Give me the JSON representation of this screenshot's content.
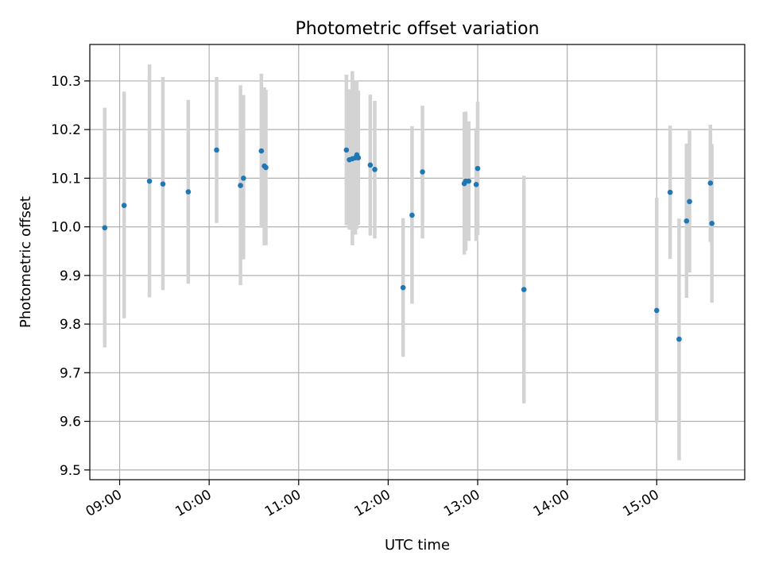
{
  "chart_data": {
    "type": "scatter",
    "title": "Photometric offset variation",
    "xlabel": "UTC time",
    "ylabel": "Photometric offset",
    "x_unit": "time",
    "xlim": [
      "08:40",
      "15:59"
    ],
    "ylim": [
      9.48,
      10.375
    ],
    "x_ticks": [
      "09:00",
      "10:00",
      "11:00",
      "12:00",
      "13:00",
      "14:00",
      "15:00"
    ],
    "y_ticks": [
      "9.5",
      "9.6",
      "9.7",
      "9.8",
      "9.9",
      "10.0",
      "10.1",
      "10.2",
      "10.3"
    ],
    "grid": true,
    "colors": {
      "point": "#1f77b4",
      "errorbar": "#d3d3d3",
      "grid": "#b0b0b0"
    },
    "series": [
      {
        "points": [
          {
            "x": "08:50",
            "y": 9.998,
            "lo": 9.752,
            "hi": 10.245
          },
          {
            "x": "09:03",
            "y": 10.044,
            "lo": 9.812,
            "hi": 10.278
          },
          {
            "x": "09:20",
            "y": 10.094,
            "lo": 9.855,
            "hi": 10.334
          },
          {
            "x": "09:29",
            "y": 10.088,
            "lo": 9.87,
            "hi": 10.308
          },
          {
            "x": "09:46",
            "y": 10.072,
            "lo": 9.883,
            "hi": 10.261
          },
          {
            "x": "10:05",
            "y": 10.158,
            "lo": 10.008,
            "hi": 10.308
          },
          {
            "x": "10:21",
            "y": 10.085,
            "lo": 9.88,
            "hi": 10.291
          },
          {
            "x": "10:23",
            "y": 10.1,
            "lo": 9.933,
            "hi": 10.271
          },
          {
            "x": "10:35",
            "y": 10.156,
            "lo": 9.998,
            "hi": 10.315
          },
          {
            "x": "10:37",
            "y": 10.125,
            "lo": 9.962,
            "hi": 10.287
          },
          {
            "x": "10:38",
            "y": 10.122,
            "lo": 9.962,
            "hi": 10.282
          },
          {
            "x": "11:32",
            "y": 10.158,
            "lo": 10.003,
            "hi": 10.313
          },
          {
            "x": "11:34",
            "y": 10.138,
            "lo": 9.994,
            "hi": 10.283
          },
          {
            "x": "11:36",
            "y": 10.14,
            "lo": 9.962,
            "hi": 10.32
          },
          {
            "x": "11:38",
            "y": 10.142,
            "lo": 9.984,
            "hi": 10.3
          },
          {
            "x": "11:39",
            "y": 10.148,
            "lo": 9.995,
            "hi": 10.301
          },
          {
            "x": "11:40",
            "y": 10.142,
            "lo": 10.004,
            "hi": 10.28
          },
          {
            "x": "11:48",
            "y": 10.127,
            "lo": 9.982,
            "hi": 10.272
          },
          {
            "x": "11:51",
            "y": 10.118,
            "lo": 9.976,
            "hi": 10.259
          },
          {
            "x": "12:10",
            "y": 9.875,
            "lo": 9.733,
            "hi": 10.018
          },
          {
            "x": "12:16",
            "y": 10.024,
            "lo": 9.842,
            "hi": 10.207
          },
          {
            "x": "12:23",
            "y": 10.113,
            "lo": 9.976,
            "hi": 10.249
          },
          {
            "x": "12:51",
            "y": 10.089,
            "lo": 9.943,
            "hi": 10.236
          },
          {
            "x": "12:52",
            "y": 10.094,
            "lo": 9.951,
            "hi": 10.237
          },
          {
            "x": "12:54",
            "y": 10.094,
            "lo": 9.971,
            "hi": 10.217
          },
          {
            "x": "12:59",
            "y": 10.087,
            "lo": 9.971,
            "hi": 10.203
          },
          {
            "x": "13:00",
            "y": 10.12,
            "lo": 9.983,
            "hi": 10.257
          },
          {
            "x": "13:31",
            "y": 9.871,
            "lo": 9.637,
            "hi": 10.105
          },
          {
            "x": "15:00",
            "y": 9.828,
            "lo": 9.597,
            "hi": 10.06
          },
          {
            "x": "15:09",
            "y": 10.071,
            "lo": 9.934,
            "hi": 10.208
          },
          {
            "x": "15:15",
            "y": 9.769,
            "lo": 9.52,
            "hi": 10.017
          },
          {
            "x": "15:20",
            "y": 10.012,
            "lo": 9.854,
            "hi": 10.171
          },
          {
            "x": "15:22",
            "y": 10.052,
            "lo": 9.906,
            "hi": 10.198
          },
          {
            "x": "15:36",
            "y": 10.09,
            "lo": 9.969,
            "hi": 10.21
          },
          {
            "x": "15:37",
            "y": 10.007,
            "lo": 9.844,
            "hi": 10.17
          }
        ]
      }
    ]
  }
}
